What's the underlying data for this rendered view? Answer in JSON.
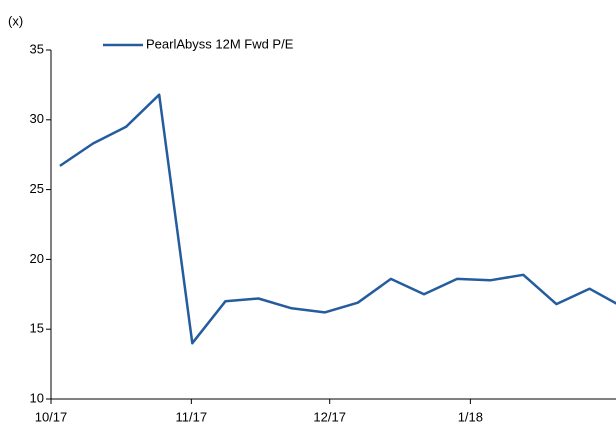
{
  "chart_data": {
    "type": "line",
    "y_axis_label": "(x)",
    "x": [
      0,
      1,
      2,
      3,
      4,
      5,
      6,
      7,
      8,
      9,
      10,
      11,
      12,
      13,
      14,
      15,
      16,
      17
    ],
    "series": [
      {
        "name": "PearlAbyss 12M Fwd P/E",
        "color": "#245c9e",
        "values": [
          26.7,
          28.3,
          29.5,
          31.8,
          14.0,
          17.0,
          17.2,
          16.5,
          16.2,
          16.9,
          18.6,
          17.5,
          18.6,
          18.5,
          18.9,
          16.8,
          17.9,
          16.6
        ]
      }
    ],
    "xlim": [
      -0.27,
      16.8
    ],
    "xticks": [
      {
        "value": -0.27,
        "label": "10/17"
      },
      {
        "value": 3.97,
        "label": "11/17"
      },
      {
        "value": 8.15,
        "label": "12/17"
      },
      {
        "value": 12.4,
        "label": "1/18"
      }
    ],
    "ylim": [
      10,
      35
    ],
    "yticks": [
      10,
      15,
      20,
      25,
      30,
      35
    ],
    "grid": false,
    "legend": "top"
  }
}
